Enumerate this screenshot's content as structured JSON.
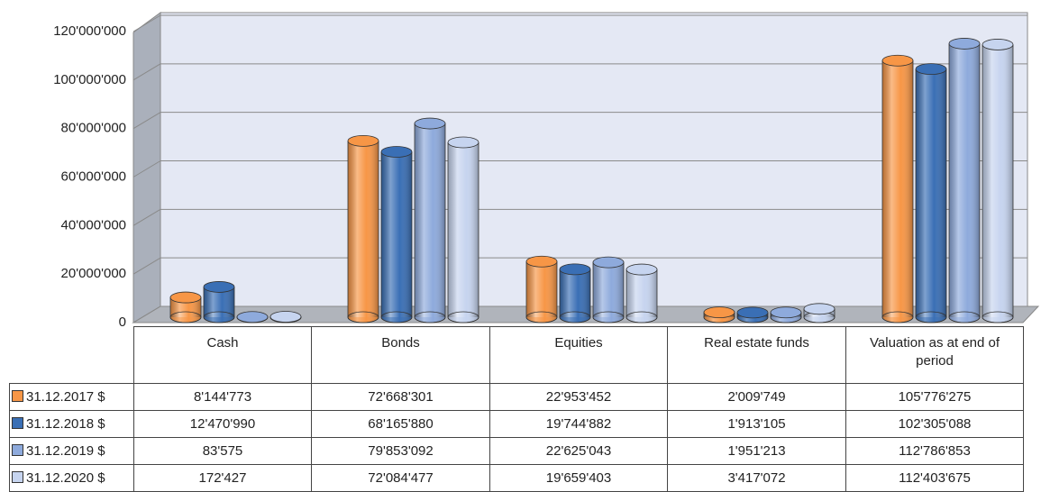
{
  "chart_data": {
    "type": "bar",
    "categories": [
      "Cash",
      "Bonds",
      "Equities",
      "Real estate funds",
      "Valuation as at end of period"
    ],
    "series": [
      {
        "name": "31.12.2017 $",
        "color": "#f79646",
        "values": [
          8144773,
          72668301,
          22953452,
          2009749,
          105776275
        ],
        "value_labels": [
          "8'144'773",
          "72'668'301",
          "22'953'452",
          "2'009'749",
          "105'776'275"
        ]
      },
      {
        "name": "31.12.2018 $",
        "color": "#3a6fb5",
        "values": [
          12470990,
          68165880,
          19744882,
          1913105,
          102305088
        ],
        "value_labels": [
          "12'470'990",
          "68'165'880",
          "19'744'882",
          "1'913'105",
          "102'305'088"
        ]
      },
      {
        "name": "31.12.2019 $",
        "color": "#8eaadc",
        "values": [
          83575,
          79853092,
          22625043,
          1951213,
          112786853
        ],
        "value_labels": [
          "83'575",
          "79'853'092",
          "22'625'043",
          "1'951'213",
          "112'786'853"
        ]
      },
      {
        "name": "31.12.2020 $",
        "color": "#c6d4ef",
        "values": [
          172427,
          72084477,
          19659403,
          3417072,
          112403675
        ],
        "value_labels": [
          "172'427",
          "72'084'477",
          "19'659'403",
          "3'417'072",
          "112'403'675"
        ]
      }
    ],
    "ylim": [
      0,
      120000000
    ],
    "yticks": [
      0,
      {
        "value": 20000000,
        "label": "20'000'000"
      },
      {
        "value": 40000000,
        "label": "40'000'000"
      },
      {
        "value": 60000000,
        "label": "60'000'000"
      },
      {
        "value": 80000000,
        "label": "80'000'000"
      },
      {
        "value": 100000000,
        "label": "100'000'000"
      },
      {
        "value": 120000000,
        "label": "120'000'000"
      }
    ],
    "grid": true
  }
}
